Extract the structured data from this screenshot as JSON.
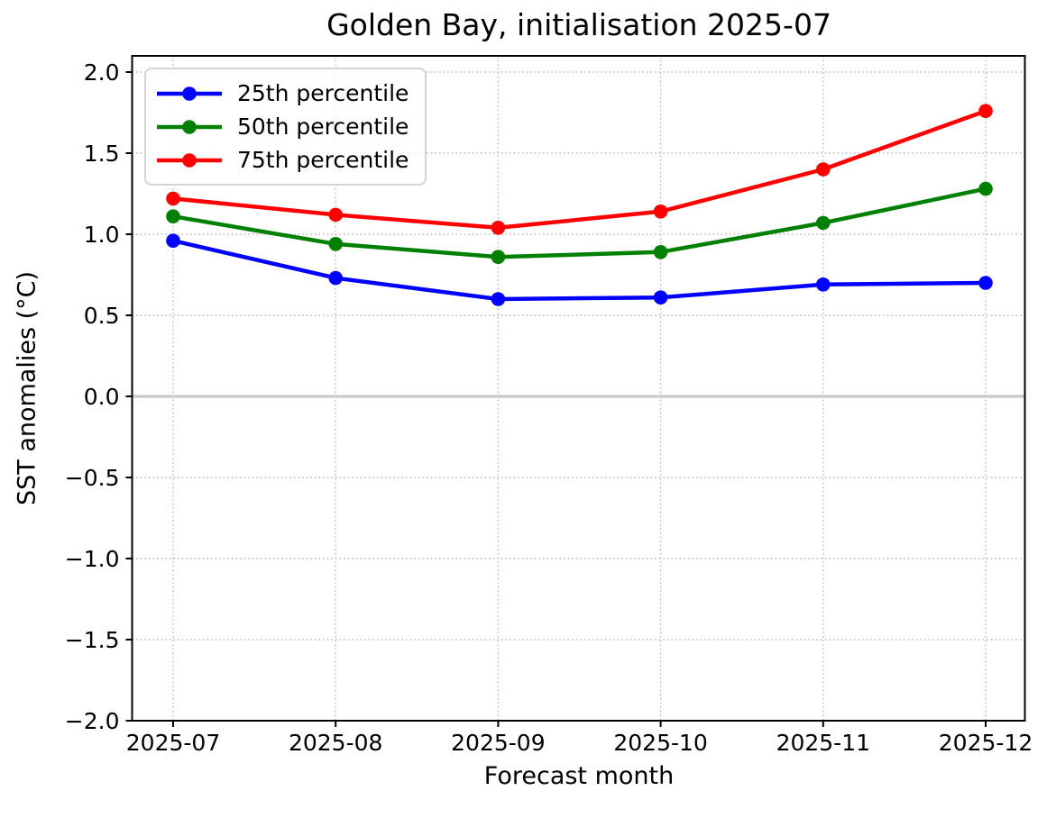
{
  "chart_data": {
    "type": "line",
    "title": "Golden Bay, initialisation 2025-07",
    "xlabel": "Forecast month",
    "ylabel": "SST anomalies (°C)",
    "categories": [
      "2025-07",
      "2025-08",
      "2025-09",
      "2025-10",
      "2025-11",
      "2025-12"
    ],
    "series": [
      {
        "name": "25th percentile",
        "color": "#0000ff",
        "marker": "circle",
        "values": [
          0.96,
          0.73,
          0.6,
          0.61,
          0.69,
          0.7
        ]
      },
      {
        "name": "50th percentile",
        "color": "#008000",
        "marker": "circle",
        "values": [
          1.11,
          0.94,
          0.86,
          0.89,
          1.07,
          1.28
        ]
      },
      {
        "name": "75th percentile",
        "color": "#ff0000",
        "marker": "circle",
        "values": [
          1.22,
          1.12,
          1.04,
          1.14,
          1.4,
          1.76
        ]
      }
    ],
    "ylim": [
      -2.0,
      2.1
    ],
    "yticks": [
      -2.0,
      -1.5,
      -1.0,
      -0.5,
      0.0,
      0.5,
      1.0,
      1.5,
      2.0
    ],
    "ytick_labels": [
      "−2.0",
      "−1.5",
      "−1.0",
      "−0.5",
      "0.0",
      "0.5",
      "1.0",
      "1.5",
      "2.0"
    ],
    "grid": "dotted",
    "legend_position": "upper left",
    "zero_line": true,
    "colors": {
      "grid": "#bababa",
      "zero_line": "#c9c9c9",
      "axis": "#000000",
      "background": "#ffffff"
    }
  }
}
